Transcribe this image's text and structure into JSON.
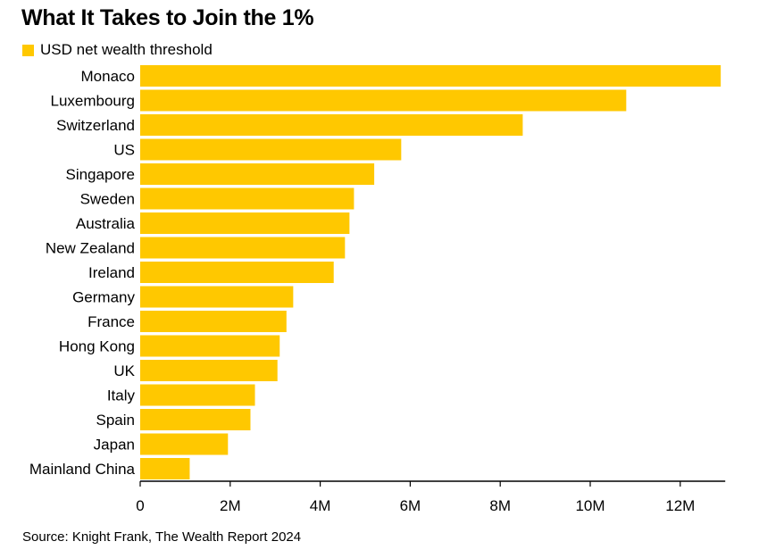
{
  "title": "What It Takes to Join the 1%",
  "source": "Source: Knight Frank, The Wealth Report 2024",
  "colors": {
    "bar": "#FFC800",
    "axis": "#000000"
  },
  "chart_data": {
    "type": "bar",
    "orientation": "horizontal",
    "title": "What It Takes to Join the 1%",
    "legend": {
      "position": "top-left",
      "entries": [
        "USD net wealth threshold"
      ]
    },
    "series": [
      {
        "name": "USD net wealth threshold",
        "values": [
          12.9,
          10.8,
          8.5,
          5.8,
          5.2,
          4.75,
          4.65,
          4.55,
          4.3,
          3.4,
          3.25,
          3.1,
          3.05,
          2.55,
          2.45,
          1.95,
          1.1
        ]
      }
    ],
    "categories": [
      "Monaco",
      "Luxembourg",
      "Switzerland",
      "US",
      "Singapore",
      "Sweden",
      "Australia",
      "New Zealand",
      "Ireland",
      "Germany",
      "France",
      "Hong Kong",
      "UK",
      "Italy",
      "Spain",
      "Japan",
      "Mainland China"
    ],
    "unit": "M",
    "xlim": [
      0,
      13
    ],
    "xticks": [
      0,
      2,
      4,
      6,
      8,
      10,
      12
    ],
    "xtick_labels": [
      "0",
      "2M",
      "4M",
      "6M",
      "8M",
      "10M",
      "12M"
    ],
    "xlabel": "",
    "ylabel": "",
    "grid": false
  }
}
